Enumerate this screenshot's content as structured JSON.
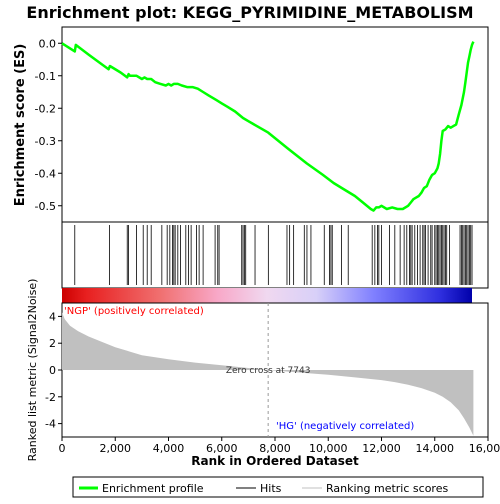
{
  "chart_data": {
    "type": "line",
    "title": "Enrichment plot: KEGG_PYRIMIDINE_METABOLISM",
    "xlabel": "Rank in Ordered Dataset",
    "ylabel_top": "Enrichment score (ES)",
    "ylabel_bottom": "Ranked list metric (Signal2Noise)",
    "xlim": [
      0,
      16000
    ],
    "x_ticks": [
      0,
      2000,
      4000,
      6000,
      8000,
      10000,
      12000,
      14000,
      16000
    ],
    "x_tick_labels": [
      "0",
      "2,000",
      "4,000",
      "6,000",
      "8,000",
      "10,000",
      "12,000",
      "14,000",
      "16,000"
    ],
    "es_ylim": [
      -0.55,
      0.05
    ],
    "es_ticks": [
      0.0,
      -0.1,
      -0.2,
      -0.3,
      -0.4,
      -0.5
    ],
    "es_tick_labels": [
      "0.0",
      "-0.1",
      "-0.2",
      "-0.3",
      "-0.4",
      "-0.5"
    ],
    "metric_ylim": [
      -5,
      5
    ],
    "metric_ticks": [
      4,
      2,
      0,
      -2,
      -4
    ],
    "metric_tick_labels": [
      "4",
      "2",
      "0",
      "-2",
      "-4"
    ],
    "series": [
      {
        "name": "Enrichment profile",
        "color": "#00ff00",
        "x": [
          0,
          480,
          520,
          1000,
          1500,
          1750,
          1800,
          2200,
          2450,
          2500,
          2550,
          2800,
          3000,
          3100,
          3200,
          3350,
          3500,
          3700,
          3900,
          4000,
          4100,
          4200,
          4350,
          4500,
          4700,
          4900,
          5100,
          5300,
          5500,
          5800,
          6000,
          6200,
          6500,
          6800,
          7000,
          7743,
          8500,
          9200,
          9800,
          10200,
          10600,
          11000,
          11300,
          11600,
          11700,
          11800,
          11900,
          12000,
          12200,
          12400,
          12600,
          12800,
          13000,
          13100,
          13200,
          13300,
          13400,
          13500,
          13600,
          13700,
          13800,
          13900,
          14000,
          14100,
          14150,
          14200,
          14250,
          14300,
          14400,
          14500,
          14600,
          14700,
          14800,
          14900,
          15000,
          15050,
          15100,
          15150,
          15200,
          15250,
          15300,
          15350,
          15400,
          15450
        ],
        "y": [
          0.0,
          -0.025,
          -0.005,
          -0.035,
          -0.065,
          -0.08,
          -0.07,
          -0.09,
          -0.105,
          -0.095,
          -0.1,
          -0.1,
          -0.11,
          -0.105,
          -0.11,
          -0.11,
          -0.12,
          -0.125,
          -0.13,
          -0.125,
          -0.13,
          -0.125,
          -0.125,
          -0.13,
          -0.135,
          -0.135,
          -0.14,
          -0.15,
          -0.16,
          -0.175,
          -0.185,
          -0.195,
          -0.21,
          -0.23,
          -0.24,
          -0.275,
          -0.325,
          -0.37,
          -0.405,
          -0.43,
          -0.45,
          -0.47,
          -0.49,
          -0.51,
          -0.515,
          -0.505,
          -0.505,
          -0.5,
          -0.51,
          -0.505,
          -0.51,
          -0.51,
          -0.5,
          -0.49,
          -0.48,
          -0.475,
          -0.47,
          -0.46,
          -0.445,
          -0.44,
          -0.42,
          -0.405,
          -0.4,
          -0.385,
          -0.37,
          -0.34,
          -0.3,
          -0.27,
          -0.265,
          -0.255,
          -0.26,
          -0.255,
          -0.25,
          -0.22,
          -0.19,
          -0.17,
          -0.15,
          -0.12,
          -0.09,
          -0.06,
          -0.04,
          -0.02,
          -0.005,
          0.005
        ]
      }
    ],
    "hits_legend": "Hits",
    "metric_legend": "Ranking metric scores",
    "hits": [
      480,
      1780,
      2450,
      2500,
      2800,
      3050,
      3200,
      3350,
      3750,
      3950,
      4050,
      4150,
      4200,
      4250,
      4350,
      4450,
      4650,
      4750,
      4850,
      5050,
      5150,
      5300,
      5750,
      5850,
      5900,
      6750,
      6800,
      6850,
      6900,
      7250,
      7750,
      8450,
      8550,
      8700,
      9100,
      9200,
      9350,
      9850,
      10050,
      10100,
      10150,
      10500,
      10750,
      11650,
      11750,
      11850,
      11900,
      12000,
      12300,
      12500,
      12700,
      12850,
      12950,
      13050,
      13100,
      13150,
      13250,
      13350,
      13450,
      13550,
      13600,
      13650,
      13750,
      13850,
      13900,
      14000,
      14050,
      14100,
      14150,
      14200,
      14250,
      14300,
      14350,
      14400,
      14450,
      14550,
      14950,
      15000,
      15050,
      15100,
      15150,
      15200,
      15250,
      15300,
      15350,
      15400
    ],
    "metric_curve": {
      "color": "#c0c0c0",
      "x": [
        0,
        100,
        300,
        600,
        1000,
        1500,
        2000,
        2500,
        3000,
        4000,
        5000,
        6000,
        7000,
        7743,
        9000,
        10000,
        11000,
        12000,
        12500,
        13000,
        13500,
        14000,
        14300,
        14600,
        14900,
        15100,
        15300,
        15450
      ],
      "y": [
        4.3,
        3.8,
        3.3,
        2.9,
        2.5,
        2.1,
        1.7,
        1.4,
        1.1,
        0.8,
        0.55,
        0.35,
        0.15,
        0.0,
        -0.2,
        -0.35,
        -0.55,
        -0.75,
        -0.9,
        -1.1,
        -1.35,
        -1.7,
        -2.0,
        -2.4,
        -3.0,
        -3.6,
        -4.3,
        -4.9
      ]
    },
    "zero_cross_label": "Zero cross at 7743",
    "zero_cross_x": 7743,
    "pos_label": "'NGP' (positively correlated)",
    "neg_label": "'HG' (negatively correlated)",
    "pos_label_color": "#ff0000",
    "neg_label_color": "#0000ff",
    "legend": [
      "Enrichment profile",
      "Hits",
      "Ranking metric scores"
    ],
    "legend_placement": "bottom",
    "colorbar_stops": [
      {
        "at": 0.0,
        "color": "#cc0000"
      },
      {
        "at": 0.06,
        "color": "#e82020"
      },
      {
        "at": 0.24,
        "color": "#f07070"
      },
      {
        "at": 0.38,
        "color": "#f8a8c8"
      },
      {
        "at": 0.5,
        "color": "#f0d8f0"
      },
      {
        "at": 0.62,
        "color": "#d8d0f8"
      },
      {
        "at": 0.76,
        "color": "#8080ff"
      },
      {
        "at": 0.92,
        "color": "#3030e0"
      },
      {
        "at": 1.0,
        "color": "#0000aa"
      }
    ]
  }
}
